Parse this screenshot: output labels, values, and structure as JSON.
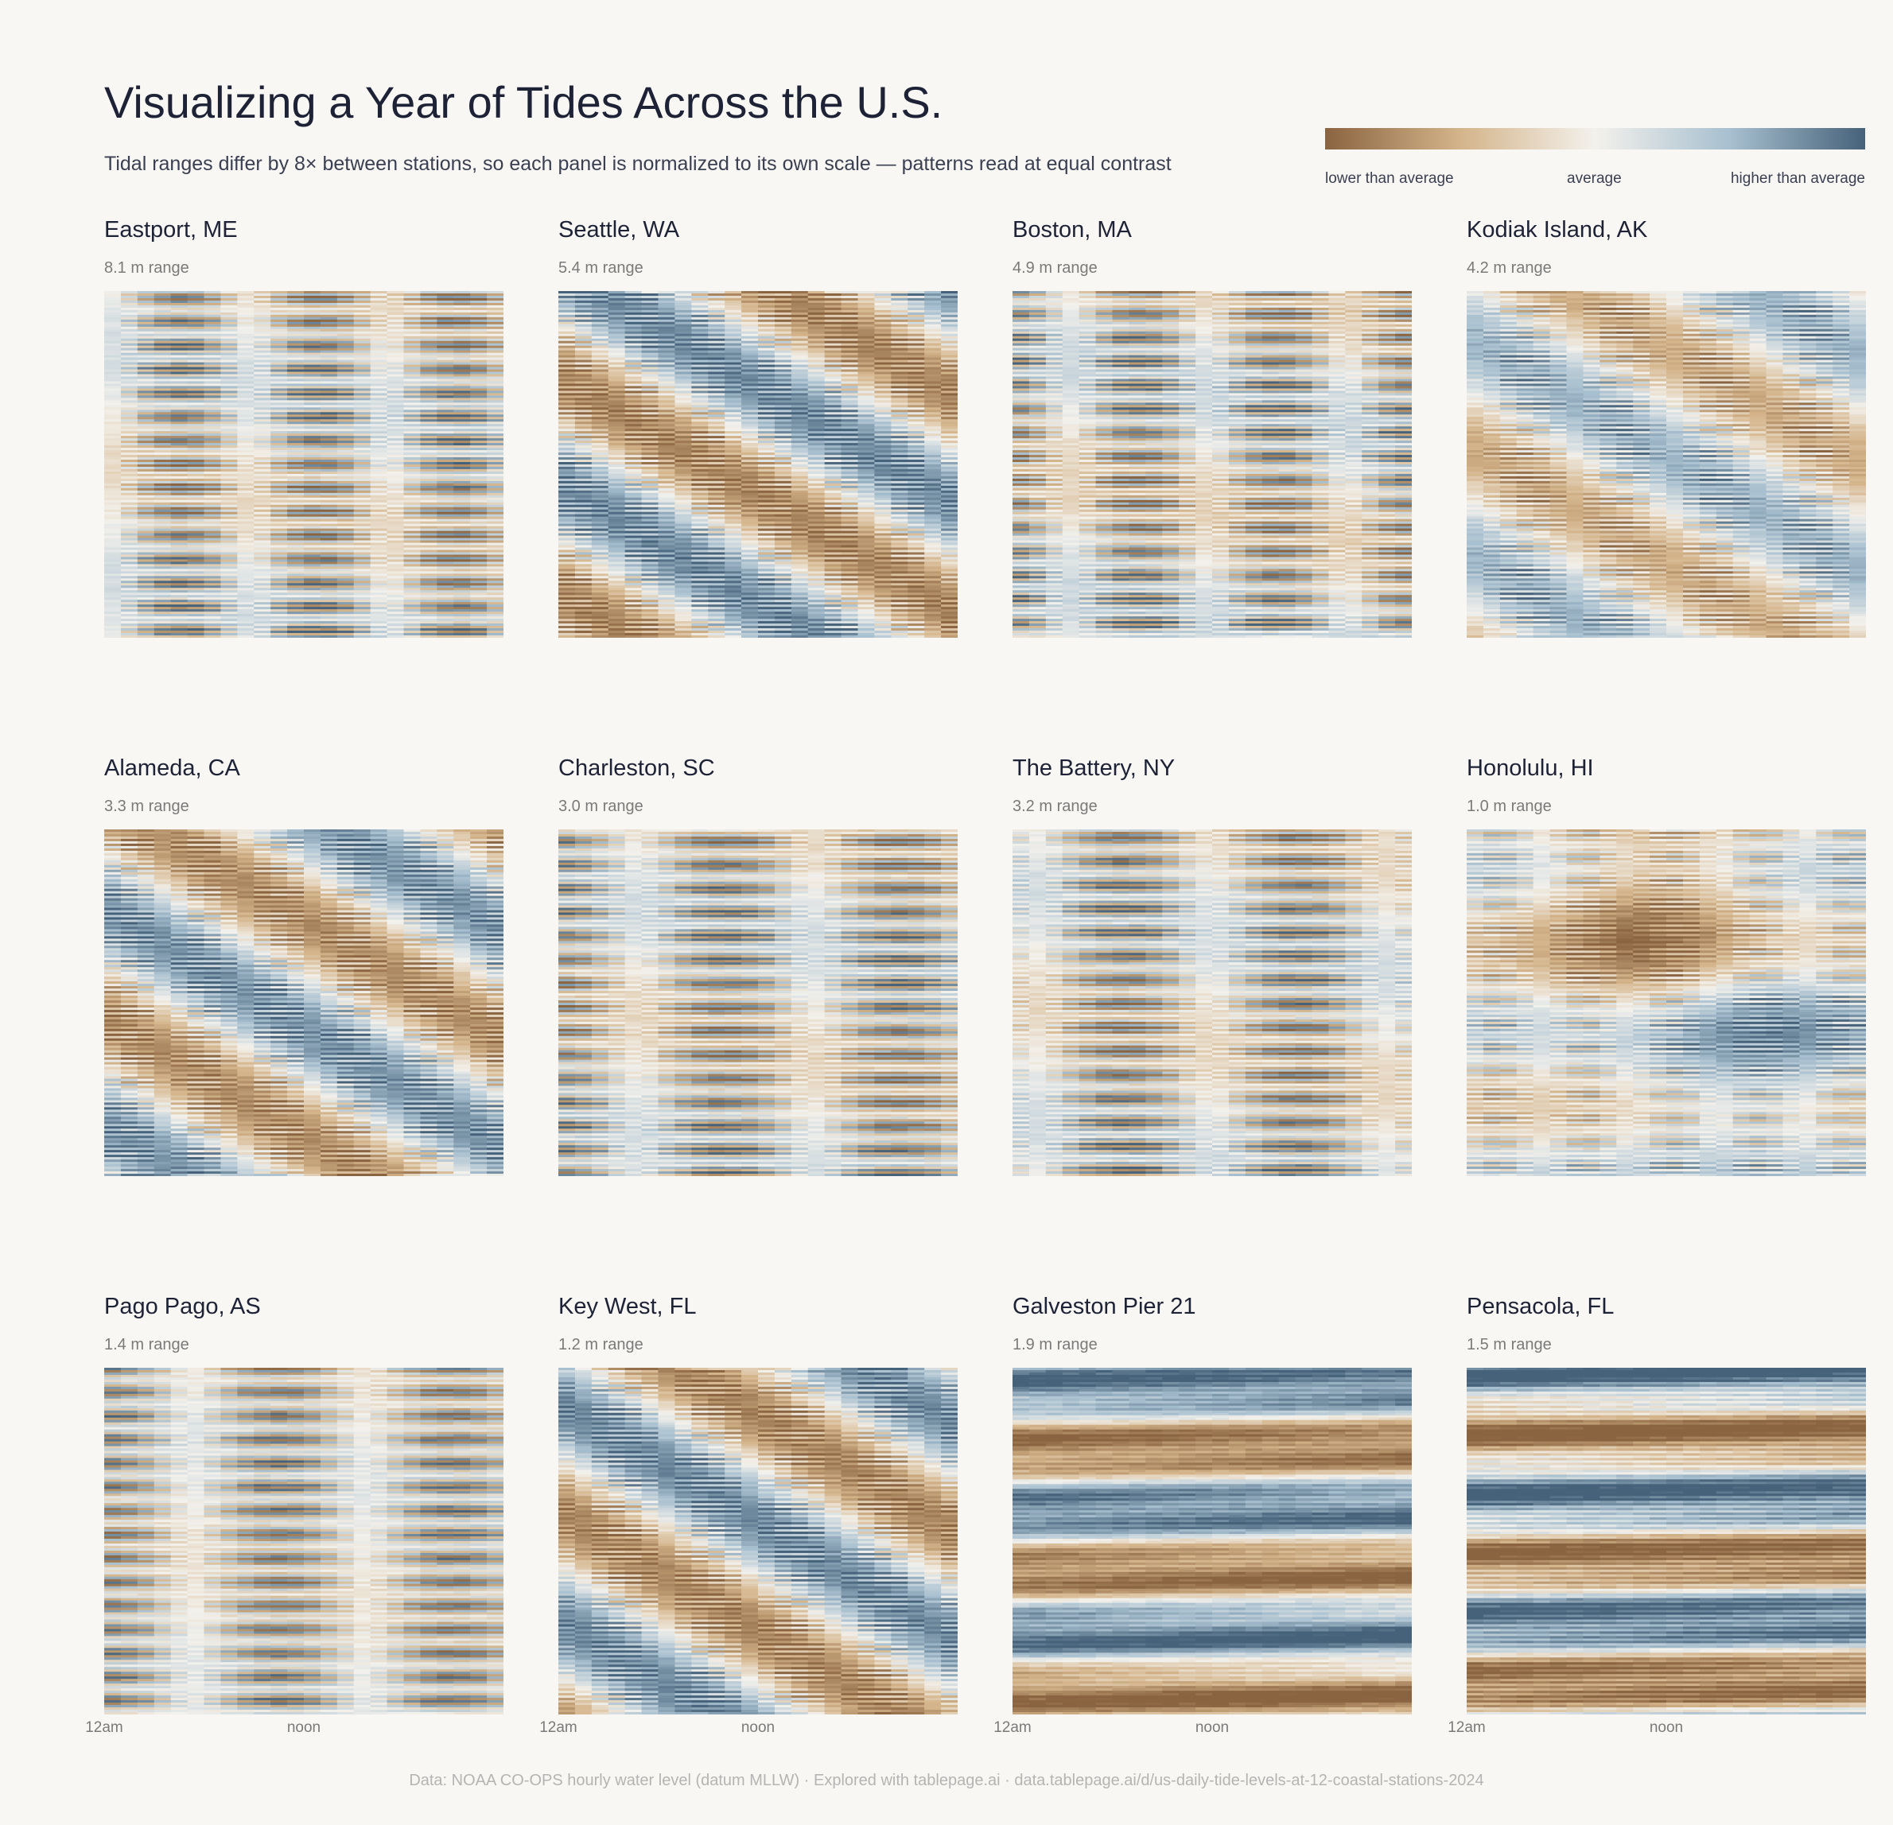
{
  "title": "Visualizing a Year of Tides Across the U.S.",
  "subtitle": "Tidal ranges differ by 8× between stations, so each panel is normalized to its own scale — patterns read at equal contrast",
  "legend": {
    "low_label": "lower than average",
    "mid_label": "average",
    "high_label": "higher than average",
    "colors": [
      "#8a6440",
      "#d4b48a",
      "#f3f1ec",
      "#a7bfcf",
      "#46627a"
    ]
  },
  "x_ticks": [
    "12am",
    "noon"
  ],
  "footer": "Data: NOAA CO-OPS hourly water level (datum MLLW)  ·  Explored with tablepage.ai  ·  data.tablepage.ai/d/us-daily-tide-levels-at-12-coastal-stations-2024",
  "chart_data": {
    "type": "heatmap",
    "x": "hour of day (24 columns, 12am to 11pm)",
    "y": "day of year 2024 (rows, top to bottom)",
    "value": "water level relative to station average, normalized per panel",
    "stations": [
      {
        "name": "Eastport, ME",
        "range_label": "8.1 m range",
        "range_m": 8.1,
        "tide": "semidiurnal",
        "drift": 0.38,
        "seasonal": 0.2,
        "seasonal_shape": "none"
      },
      {
        "name": "Seattle, WA",
        "range_label": "5.4 m range",
        "range_m": 5.4,
        "tide": "mixed",
        "drift": 0.8,
        "seasonal": 0.8,
        "seasonal_shape": "diagonal"
      },
      {
        "name": "Boston, MA",
        "range_label": "4.9 m range",
        "range_m": 4.9,
        "tide": "semidiurnal",
        "drift": 0.38,
        "seasonal": 0.25,
        "seasonal_shape": "none"
      },
      {
        "name": "Kodiak Island, AK",
        "range_label": "4.2 m range",
        "range_m": 4.2,
        "tide": "mixed",
        "drift": 0.55,
        "seasonal": 0.55,
        "seasonal_shape": "diagonal"
      },
      {
        "name": "Alameda, CA",
        "range_label": "3.3 m range",
        "range_m": 3.3,
        "tide": "mixed",
        "drift": 0.7,
        "seasonal": 0.75,
        "seasonal_shape": "diagonal"
      },
      {
        "name": "Charleston, SC",
        "range_label": "3.0 m range",
        "range_m": 3.0,
        "tide": "semidiurnal",
        "drift": 0.3,
        "seasonal": 0.2,
        "seasonal_shape": "none"
      },
      {
        "name": "The Battery, NY",
        "range_label": "3.2 m range",
        "range_m": 3.2,
        "tide": "semidiurnal",
        "drift": 0.3,
        "seasonal": 0.2,
        "seasonal_shape": "none"
      },
      {
        "name": "Honolulu, HI",
        "range_label": "1.0 m range",
        "range_m": 1.0,
        "tide": "mixed",
        "drift": 0.6,
        "seasonal": 0.85,
        "seasonal_shape": "blob"
      },
      {
        "name": "Pago Pago, AS",
        "range_label": "1.4 m range",
        "range_m": 1.4,
        "tide": "semidiurnal",
        "drift": 0.3,
        "seasonal": 0.1,
        "seasonal_shape": "none"
      },
      {
        "name": "Key West, FL",
        "range_label": "1.2 m range",
        "range_m": 1.2,
        "tide": "mixed",
        "drift": 0.6,
        "seasonal": 0.8,
        "seasonal_shape": "diagonal"
      },
      {
        "name": "Galveston Pier 21",
        "range_label": "1.9 m range",
        "range_m": 1.9,
        "tide": "diurnal",
        "drift": 0.0,
        "seasonal": 0.9,
        "seasonal_shape": "bands"
      },
      {
        "name": "Pensacola, FL",
        "range_label": "1.5 m range",
        "range_m": 1.5,
        "tide": "diurnal",
        "drift": 0.0,
        "seasonal": 0.95,
        "seasonal_shape": "bands"
      }
    ]
  }
}
